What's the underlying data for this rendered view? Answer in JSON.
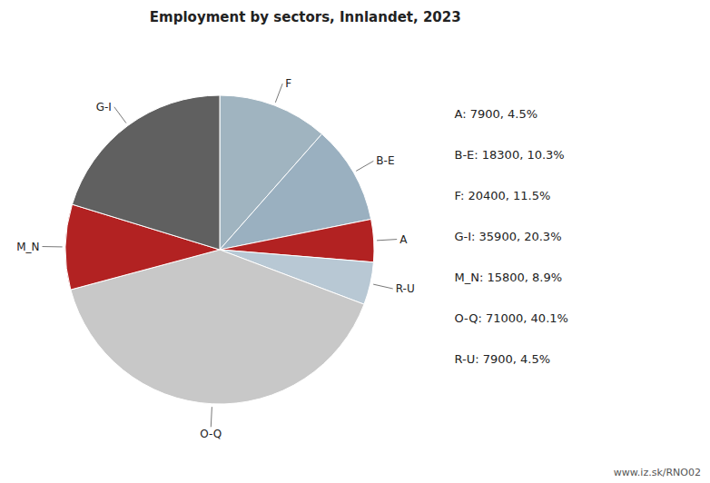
{
  "chart_data": {
    "type": "pie",
    "title": "Employment by sectors, Innlandet, 2023",
    "categories": [
      "F",
      "B-E",
      "A",
      "R-U",
      "O-Q",
      "M_N",
      "G-I"
    ],
    "values": [
      20400,
      18300,
      7900,
      7900,
      71000,
      15800,
      35900
    ],
    "colors": [
      "#a0b4c0",
      "#9ab0c0",
      "#b22222",
      "#b8c8d4",
      "#c8c8c8",
      "#b22222",
      "#606060"
    ],
    "annotations": [
      "A: 7900, 4.5%",
      "B-E: 18300, 10.3%",
      "F: 20400, 11.5%",
      "G-I: 35900, 20.3%",
      "M_N: 15800, 8.9%",
      "O-Q: 71000, 40.1%",
      "R-U: 7900, 4.5%"
    ],
    "source": "www.iz.sk/RNO02"
  }
}
